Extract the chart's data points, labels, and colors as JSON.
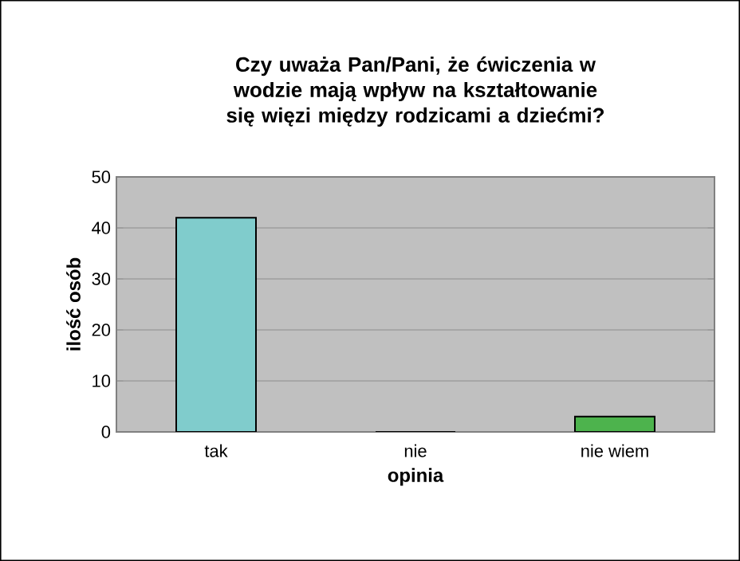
{
  "chart_data": {
    "type": "bar",
    "title": "Czy uważa Pan/Pani, że ćwiczenia w wodzie mają wpływ na kształtowanie się więzi między rodzicami a dziećmi?",
    "xlabel": "opinia",
    "ylabel": "ilość osób",
    "categories": [
      "tak",
      "nie",
      "nie wiem"
    ],
    "values": [
      42,
      0,
      3
    ],
    "colors": [
      "#80cccc",
      "#9999ff",
      "#4db34d"
    ],
    "ylim": [
      0,
      50
    ],
    "yticks": [
      0,
      10,
      20,
      30,
      40,
      50
    ],
    "grid": "y"
  }
}
